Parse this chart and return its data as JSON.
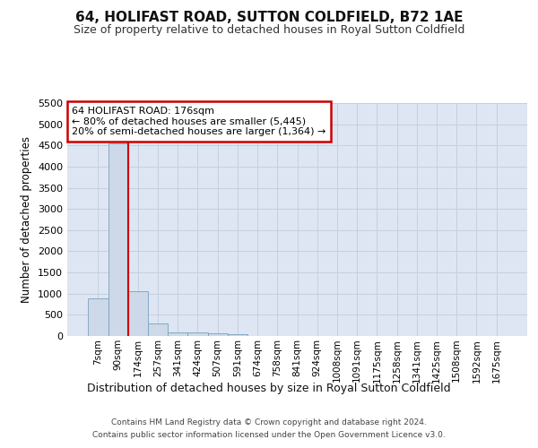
{
  "title": "64, HOLIFAST ROAD, SUTTON COLDFIELD, B72 1AE",
  "subtitle": "Size of property relative to detached houses in Royal Sutton Coldfield",
  "xlabel": "Distribution of detached houses by size in Royal Sutton Coldfield",
  "ylabel": "Number of detached properties",
  "footer_line1": "Contains HM Land Registry data © Crown copyright and database right 2024.",
  "footer_line2": "Contains public sector information licensed under the Open Government Licence v3.0.",
  "bin_labels": [
    "7sqm",
    "90sqm",
    "174sqm",
    "257sqm",
    "341sqm",
    "424sqm",
    "507sqm",
    "591sqm",
    "674sqm",
    "758sqm",
    "841sqm",
    "924sqm",
    "1008sqm",
    "1091sqm",
    "1175sqm",
    "1258sqm",
    "1341sqm",
    "1425sqm",
    "1508sqm",
    "1592sqm",
    "1675sqm"
  ],
  "bar_values": [
    880,
    4540,
    1060,
    290,
    90,
    80,
    55,
    50,
    0,
    0,
    0,
    0,
    0,
    0,
    0,
    0,
    0,
    0,
    0,
    0,
    0
  ],
  "bar_color": "#cdd9e8",
  "bar_edge_color": "#7aa0be",
  "grid_color": "#c5cfe0",
  "background_color": "#dde6f2",
  "property_label": "64 HOLIFAST ROAD: 176sqm",
  "annotation_line1": "← 80% of detached houses are smaller (5,445)",
  "annotation_line2": "20% of semi-detached houses are larger (1,364) →",
  "annotation_box_color": "#ffffff",
  "annotation_box_edge": "#cc0000",
  "vline_color": "#cc0000",
  "vline_x_index": 2,
  "ylim": [
    0,
    5500
  ],
  "yticks": [
    0,
    500,
    1000,
    1500,
    2000,
    2500,
    3000,
    3500,
    4000,
    4500,
    5000,
    5500
  ]
}
